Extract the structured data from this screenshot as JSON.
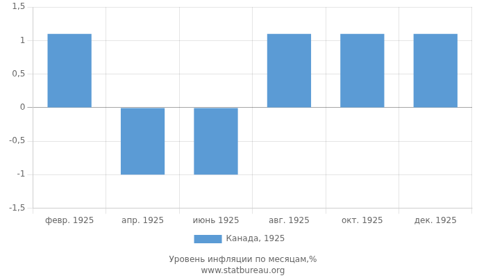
{
  "chart_data": {
    "type": "bar",
    "categories": [
      "февр. 1925",
      "апр. 1925",
      "июнь 1925",
      "авг. 1925",
      "окт. 1925",
      "дек. 1925"
    ],
    "series": [
      {
        "name": "Канада, 1925",
        "color": "#5B9BD5",
        "values": [
          1.1,
          -1.0,
          -1.0,
          1.1,
          1.1,
          1.1
        ]
      }
    ],
    "ylim": [
      -1.5,
      1.5
    ],
    "yticks": [
      {
        "value": -1.5,
        "label": "-1,5"
      },
      -1,
      {
        "value": -0.5,
        "label": "-0,5"
      },
      0,
      {
        "value": 0.5,
        "label": "0,5"
      },
      1,
      {
        "value": 1.5,
        "label": "1,5"
      }
    ],
    "grid": true,
    "legend": "bottom",
    "annotations": [
      "Уровень инфляции по месяцам,%",
      "www.statbureau.org"
    ]
  }
}
